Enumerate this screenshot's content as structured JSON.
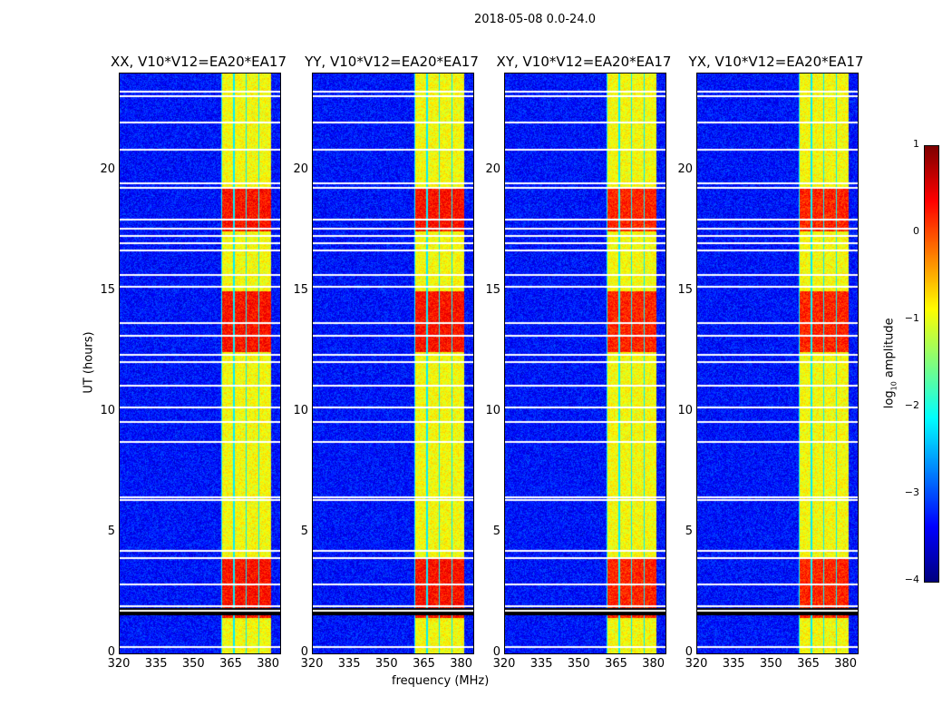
{
  "chart_data": {
    "type": "heatmap",
    "title": "2018-05-08 0.0-24.0",
    "xlabel": "frequency (MHz)",
    "ylabel": "UT (hours)",
    "xlim": [
      320,
      384.5
    ],
    "ylim": [
      0,
      24
    ],
    "xticks": [
      "320",
      "335",
      "350",
      "365",
      "380"
    ],
    "xtick_values": [
      320,
      335,
      350,
      365,
      380
    ],
    "yticks": [
      "0",
      "5",
      "10",
      "15",
      "20"
    ],
    "ytick_values": [
      0,
      5,
      10,
      15,
      20
    ],
    "panels": [
      {
        "title": "XX, V10*V12=EA20*EA17",
        "band_peak": 0.3
      },
      {
        "title": "YY, V10*V12=EA20*EA17",
        "band_peak": 0.3
      },
      {
        "title": "XY, V10*V12=EA20*EA17",
        "band_peak": 0.2
      },
      {
        "title": "YX, V10*V12=EA20*EA17",
        "band_peak": 0.2
      }
    ],
    "bright_band_mhz": [
      360.5,
      380.5
    ],
    "background_log10_amplitude": -3.3,
    "flagged_hours": [
      0.3,
      1.8,
      2.0,
      2.9,
      4.0,
      4.3,
      6.4,
      6.5,
      8.8,
      9.6,
      10.2,
      11.1,
      12.1,
      12.4,
      13.2,
      13.7,
      15.2,
      15.7,
      16.7,
      17.0,
      17.3,
      17.6,
      18.0,
      19.3,
      19.5,
      20.9,
      22.0,
      23.1,
      23.3
    ],
    "colorbar": {
      "label": "log10 amplitude",
      "label_main": "log",
      "label_sub": "10",
      "label_rest": " amplitude",
      "range": [
        -4,
        1
      ],
      "ticks": [
        "−4",
        "−3",
        "−2",
        "−1",
        "0",
        "1"
      ],
      "tick_values": [
        -4,
        -3,
        -2,
        -1,
        0,
        1
      ]
    }
  }
}
